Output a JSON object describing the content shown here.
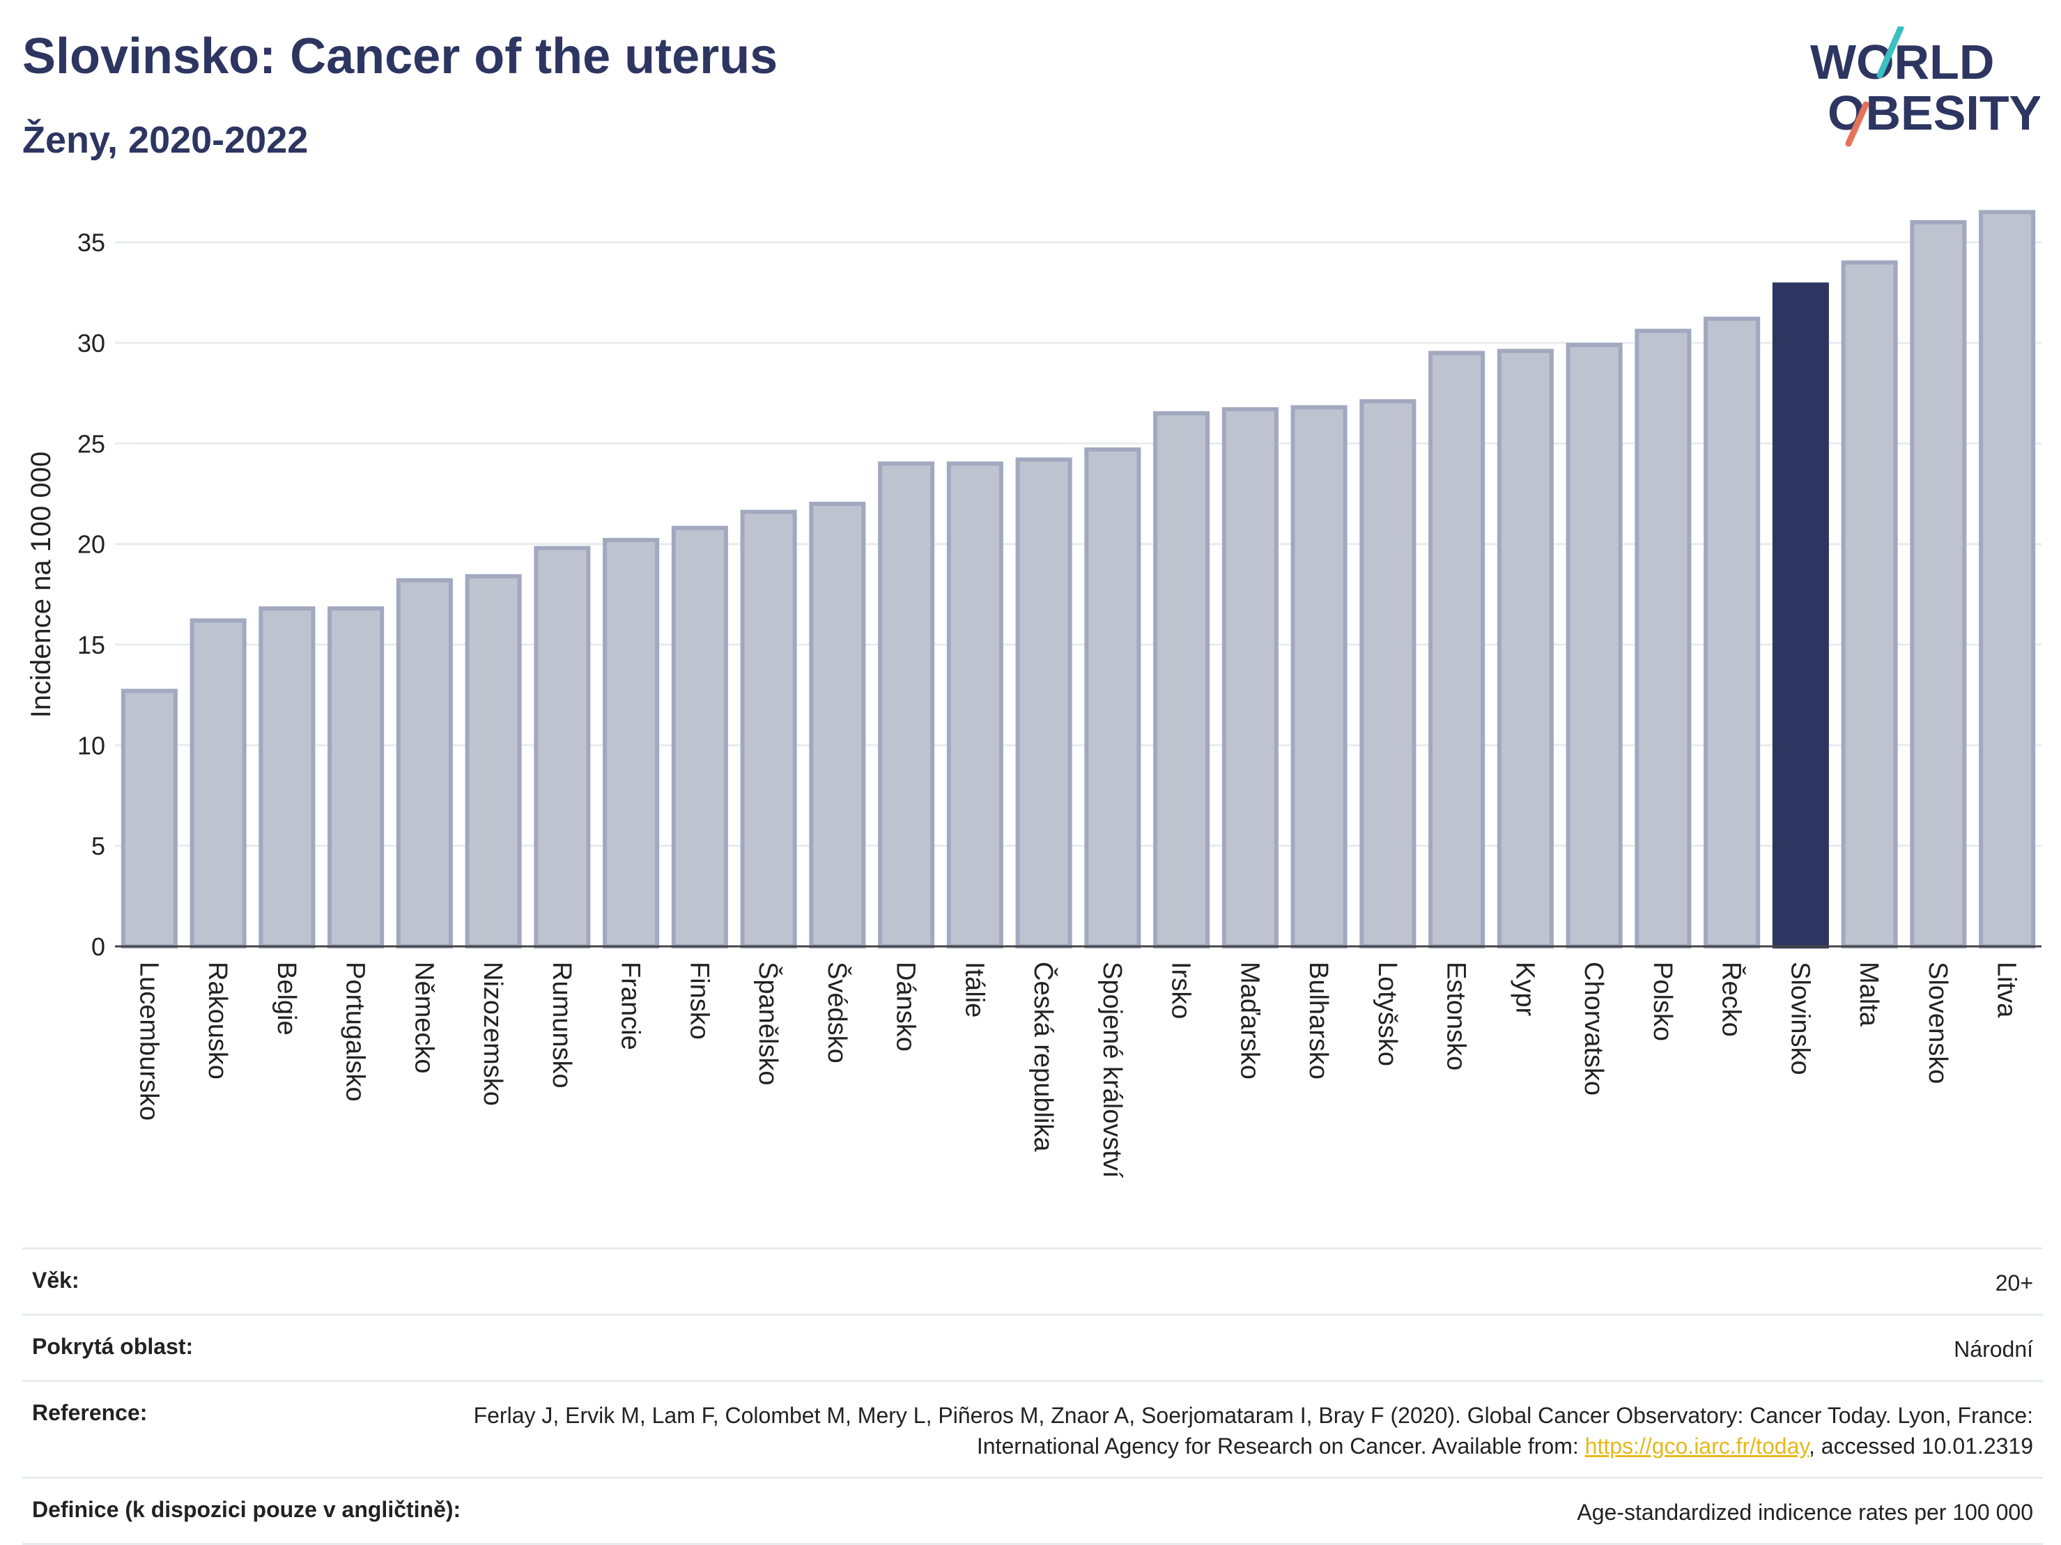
{
  "header": {
    "title": "Slovinsko: Cancer of the uterus",
    "subtitle": "Ženy, 2020-2022"
  },
  "logo": {
    "line1": "WORLD",
    "line2": "OBESITY"
  },
  "chart_data": {
    "type": "bar",
    "ylabel": "Incidence na 100 000",
    "xlabel": "",
    "ylim": [
      0,
      37
    ],
    "yticks": [
      0,
      5,
      10,
      15,
      20,
      25,
      30,
      35
    ],
    "grid": true,
    "highlight": "Slovinsko",
    "colors": {
      "bar": "#bfc3d0",
      "bar_edge": "#a2a8bf",
      "highlight": "#2d3561",
      "grid": "#e8ecef"
    },
    "categories": [
      "Lucembursko",
      "Rakousko",
      "Belgie",
      "Portugalsko",
      "Německo",
      "Nizozemsko",
      "Rumunsko",
      "Francie",
      "Finsko",
      "Španělsko",
      "Švédsko",
      "Dánsko",
      "Itálie",
      "Česká republika",
      "Spojené království",
      "Irsko",
      "Maďarsko",
      "Bulharsko",
      "Lotyšsko",
      "Estonsko",
      "Kypr",
      "Chorvatsko",
      "Polsko",
      "Řecko",
      "Slovinsko",
      "Malta",
      "Slovensko",
      "Litva"
    ],
    "values": [
      12.7,
      16.2,
      16.8,
      16.8,
      18.2,
      18.4,
      19.8,
      20.2,
      20.8,
      21.6,
      22.0,
      24.0,
      24.0,
      24.2,
      24.7,
      26.5,
      26.7,
      26.8,
      27.1,
      29.5,
      29.6,
      29.9,
      30.6,
      31.2,
      32.9,
      34.0,
      36.0,
      36.5
    ]
  },
  "meta": {
    "age_label": "Věk:",
    "age_value": "20+",
    "area_label": "Pokrytá oblast:",
    "area_value": "Národní",
    "ref_label": "Reference:",
    "ref_text_1": "Ferlay J, Ervik M, Lam F, Colombet M, Mery L, Piñeros M, Znaor A, Soerjomataram I, Bray F (2020). Global Cancer Observatory: Cancer Today. Lyon, France: International Agency for Research on Cancer. Available from: ",
    "ref_link": "https://gco.iarc.fr/today",
    "ref_text_2": ", accessed 10.01.2319",
    "def_label": "Definice (k dispozici pouze v angličtině):",
    "def_value": "Age-standardized indicence rates per 100 000"
  }
}
